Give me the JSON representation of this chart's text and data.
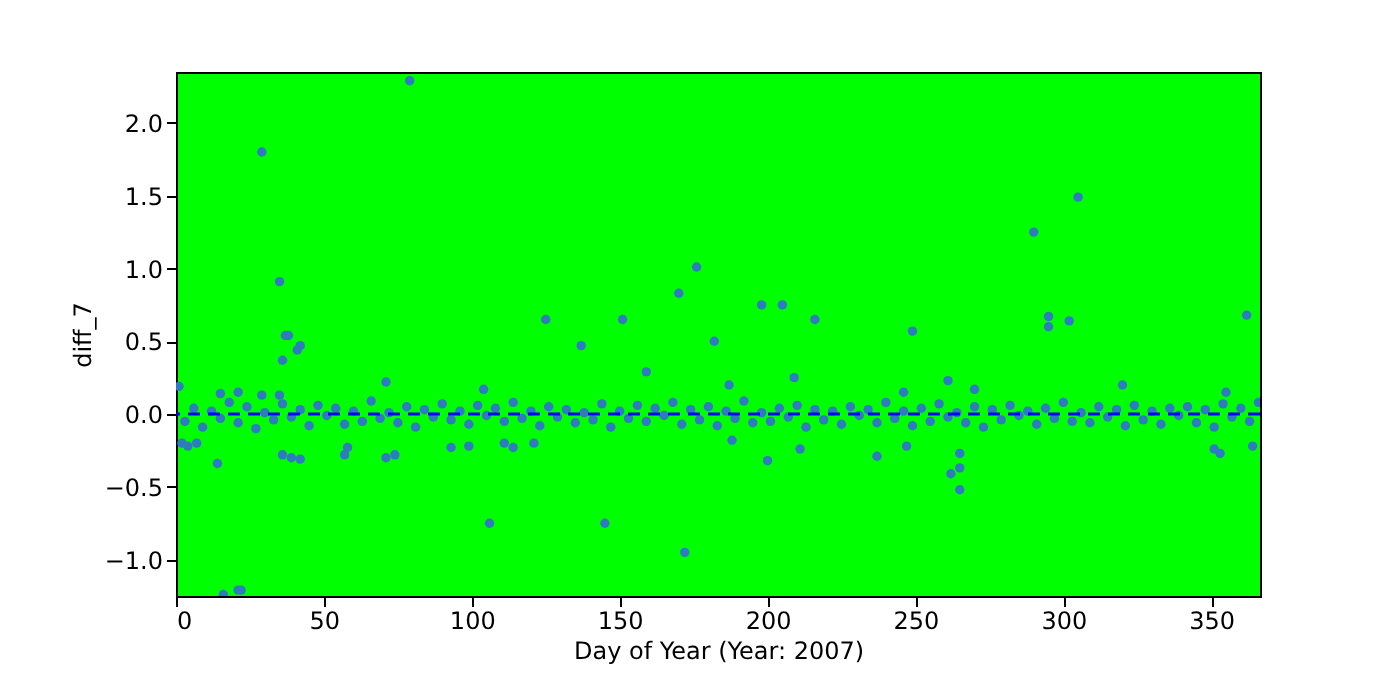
{
  "chart_data": {
    "type": "scatter",
    "xlabel": "Day of Year (Year: 2007)",
    "ylabel": "diff_7",
    "xlim": [
      0,
      366.5
    ],
    "ylim": [
      -1.25,
      2.35
    ],
    "xticks": [
      0,
      50,
      100,
      150,
      200,
      250,
      300,
      350
    ],
    "yticks": [
      {
        "value": -1,
        "label": "−1.0"
      },
      {
        "value": -0.5,
        "label": "−0.5"
      },
      {
        "value": 0,
        "label": "0.0"
      },
      {
        "value": 0.5,
        "label": "0.5"
      },
      {
        "value": 1,
        "label": "1.0"
      },
      {
        "value": 1.5,
        "label": "1.5"
      },
      {
        "value": 2,
        "label": "2.0"
      }
    ],
    "grid": false,
    "marker": "circle",
    "ref_lines": [
      {
        "axis": "y",
        "value": 0,
        "color": "#0000ff",
        "line_style": "dashed"
      }
    ],
    "series": [
      {
        "color": "#2f7bbf",
        "x": [
          3,
          6,
          9,
          12,
          15,
          18,
          21,
          24,
          27,
          30,
          33,
          36,
          39,
          42,
          45,
          48,
          51,
          54,
          57,
          60,
          63,
          66,
          69,
          72,
          75,
          78,
          81,
          84,
          87,
          90,
          93,
          96,
          99,
          102,
          105,
          108,
          111,
          114,
          117,
          120,
          123,
          126,
          129,
          132,
          135,
          138,
          141,
          144,
          147,
          150,
          153,
          156,
          159,
          162,
          165,
          168,
          171,
          174,
          177,
          180,
          183,
          186,
          189,
          192,
          195,
          198,
          201,
          204,
          207,
          210,
          213,
          216,
          219,
          222,
          225,
          228,
          231,
          234,
          237,
          240,
          243,
          246,
          249,
          252,
          255,
          258,
          261,
          264,
          267,
          270,
          273,
          276,
          279,
          282,
          285,
          288,
          291,
          294,
          297,
          300,
          303,
          306,
          309,
          312,
          315,
          318,
          321,
          324,
          327,
          330,
          333,
          336,
          339,
          342,
          345,
          348,
          351,
          354,
          357,
          360,
          363,
          366,
          79,
          29,
          35,
          37,
          38,
          125,
          151,
          170,
          176,
          305,
          290,
          198,
          205,
          216,
          249,
          295,
          295,
          302,
          362,
          42,
          41,
          36,
          137,
          159,
          182,
          14,
          106,
          145,
          172,
          21,
          22,
          16,
          36,
          39,
          42,
          71,
          74,
          93,
          99,
          57,
          58,
          1,
          71,
          104,
          111,
          114,
          121,
          2,
          4,
          7,
          15,
          21,
          29,
          35,
          209,
          187,
          246,
          261,
          270,
          320,
          355,
          200,
          211,
          237,
          265,
          262,
          265,
          265,
          351,
          353,
          364,
          188,
          247
        ],
        "values": [
          -0.05,
          0.04,
          -0.09,
          0.02,
          -0.03,
          0.08,
          -0.06,
          0.05,
          -0.1,
          0.01,
          -0.04,
          0.07,
          -0.02,
          0.03,
          -0.08,
          0.06,
          -0.01,
          0.04,
          -0.07,
          0.02,
          -0.05,
          0.09,
          -0.03,
          0.01,
          -0.06,
          0.05,
          -0.09,
          0.03,
          -0.02,
          0.07,
          -0.04,
          0.02,
          -0.07,
          0.06,
          -0.01,
          0.04,
          -0.05,
          0.08,
          -0.03,
          0.02,
          -0.08,
          0.05,
          -0.02,
          0.03,
          -0.06,
          0.01,
          -0.04,
          0.07,
          -0.09,
          0.02,
          -0.03,
          0.06,
          -0.05,
          0.04,
          -0.01,
          0.08,
          -0.07,
          0.03,
          -0.04,
          0.05,
          -0.08,
          0.02,
          -0.03,
          0.09,
          -0.06,
          0.01,
          -0.05,
          0.04,
          -0.02,
          0.06,
          -0.09,
          0.03,
          -0.04,
          0.02,
          -0.07,
          0.05,
          -0.01,
          0.03,
          -0.06,
          0.08,
          -0.03,
          0.02,
          -0.08,
          0.04,
          -0.05,
          0.07,
          -0.02,
          0.01,
          -0.06,
          0.05,
          -0.09,
          0.03,
          -0.04,
          0.06,
          -0.01,
          0.02,
          -0.07,
          0.04,
          -0.03,
          0.08,
          -0.05,
          0.01,
          -0.06,
          0.05,
          -0.02,
          0.03,
          -0.08,
          0.06,
          -0.04,
          0.02,
          -0.07,
          0.04,
          -0.01,
          0.05,
          -0.06,
          0.03,
          -0.09,
          0.07,
          -0.02,
          0.04,
          -0.05,
          0.08,
          2.29,
          1.8,
          0.91,
          0.54,
          0.54,
          0.65,
          0.65,
          0.83,
          1.01,
          1.49,
          1.25,
          0.75,
          0.75,
          0.65,
          0.57,
          0.67,
          0.6,
          0.64,
          0.68,
          0.47,
          0.44,
          0.37,
          0.47,
          0.29,
          0.5,
          -0.34,
          -0.75,
          -0.75,
          -0.95,
          -1.21,
          -1.21,
          -1.24,
          -0.28,
          -0.3,
          -0.31,
          -0.3,
          -0.28,
          -0.23,
          -0.22,
          -0.28,
          -0.23,
          0.19,
          0.22,
          0.17,
          -0.2,
          -0.23,
          -0.2,
          -0.2,
          -0.22,
          -0.2,
          0.14,
          0.15,
          0.13,
          0.13,
          0.25,
          0.2,
          0.15,
          0.23,
          0.17,
          0.2,
          0.15,
          -0.32,
          -0.24,
          -0.29,
          -0.27,
          -0.41,
          -0.37,
          -0.52,
          -0.24,
          -0.27,
          -0.22,
          -0.18,
          -0.22
        ]
      }
    ]
  }
}
